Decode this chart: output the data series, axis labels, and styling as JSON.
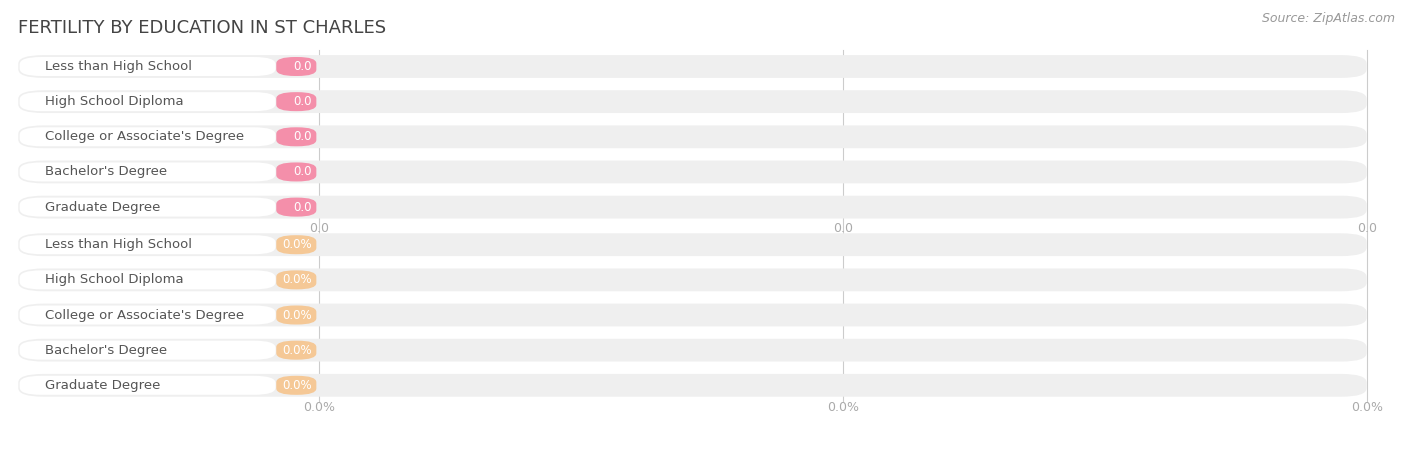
{
  "title": "FERTILITY BY EDUCATION IN ST CHARLES",
  "source_text": "Source: ZipAtlas.com",
  "categories": [
    "Less than High School",
    "High School Diploma",
    "College or Associate's Degree",
    "Bachelor's Degree",
    "Graduate Degree"
  ],
  "values_top": [
    0.0,
    0.0,
    0.0,
    0.0,
    0.0
  ],
  "values_bottom": [
    0.0,
    0.0,
    0.0,
    0.0,
    0.0
  ],
  "bar_color_top": "#F48FAA",
  "bar_bg_color_top": "#EFEFEF",
  "bar_color_bottom": "#F5C896",
  "bar_bg_color_bottom": "#EFEFEF",
  "label_color": "#555555",
  "value_color_top": "#ffffff",
  "value_color_bottom": "#ffffff",
  "title_color": "#444444",
  "source_color": "#999999",
  "tick_color": "#aaaaaa",
  "background_color": "#ffffff",
  "top_tick_labels": [
    "0.0",
    "0.0",
    "0.0"
  ],
  "bottom_tick_labels": [
    "0.0%",
    "0.0%",
    "0.0%"
  ],
  "label_font_size": 9.5,
  "value_font_size": 8.5,
  "title_font_size": 13,
  "source_font_size": 9
}
